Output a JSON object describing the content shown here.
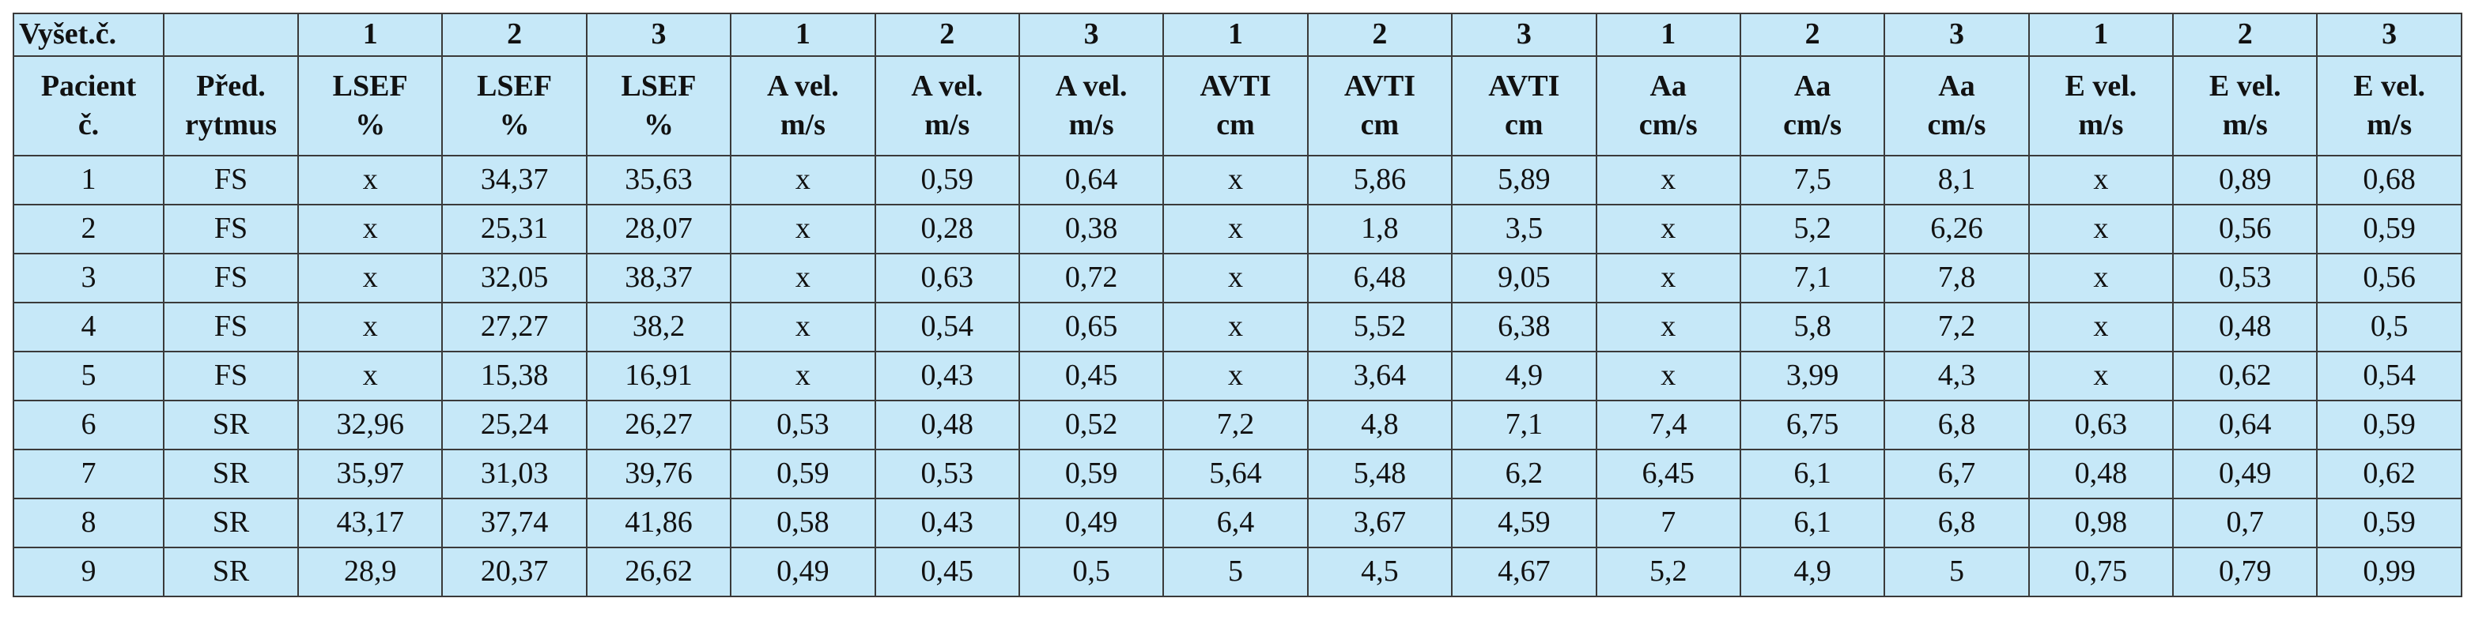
{
  "table": {
    "exam_label": "Vyšet.č.",
    "exam_numbers": [
      1,
      2,
      3,
      1,
      2,
      3,
      1,
      2,
      3,
      1,
      2,
      3,
      1,
      2,
      3
    ],
    "headers": [
      [
        "Pacient",
        "č."
      ],
      [
        "Před.",
        "rytmus"
      ],
      [
        "LSEF",
        "%"
      ],
      [
        "LSEF",
        "%"
      ],
      [
        "LSEF",
        "%"
      ],
      [
        "A vel.",
        "m/s"
      ],
      [
        "A vel.",
        "m/s"
      ],
      [
        "A vel.",
        "m/s"
      ],
      [
        "AVTI",
        "cm"
      ],
      [
        "AVTI",
        "cm"
      ],
      [
        "AVTI",
        "cm"
      ],
      [
        "Aa",
        "cm/s"
      ],
      [
        "Aa",
        "cm/s"
      ],
      [
        "Aa",
        "cm/s"
      ],
      [
        "E vel.",
        "m/s"
      ],
      [
        "E vel.",
        "m/s"
      ],
      [
        "E vel.",
        "m/s"
      ]
    ],
    "rows": [
      [
        "1",
        "FS",
        "x",
        "34,37",
        "35,63",
        "x",
        "0,59",
        "0,64",
        "x",
        "5,86",
        "5,89",
        "x",
        "7,5",
        "8,1",
        "x",
        "0,89",
        "0,68"
      ],
      [
        "2",
        "FS",
        "x",
        "25,31",
        "28,07",
        "x",
        "0,28",
        "0,38",
        "x",
        "1,8",
        "3,5",
        "x",
        "5,2",
        "6,26",
        "x",
        "0,56",
        "0,59"
      ],
      [
        "3",
        "FS",
        "x",
        "32,05",
        "38,37",
        "x",
        "0,63",
        "0,72",
        "x",
        "6,48",
        "9,05",
        "x",
        "7,1",
        "7,8",
        "x",
        "0,53",
        "0,56"
      ],
      [
        "4",
        "FS",
        "x",
        "27,27",
        "38,2",
        "x",
        "0,54",
        "0,65",
        "x",
        "5,52",
        "6,38",
        "x",
        "5,8",
        "7,2",
        "x",
        "0,48",
        "0,5"
      ],
      [
        "5",
        "FS",
        "x",
        "15,38",
        "16,91",
        "x",
        "0,43",
        "0,45",
        "x",
        "3,64",
        "4,9",
        "x",
        "3,99",
        "4,3",
        "x",
        "0,62",
        "0,54"
      ],
      [
        "6",
        "SR",
        "32,96",
        "25,24",
        "26,27",
        "0,53",
        "0,48",
        "0,52",
        "7,2",
        "4,8",
        "7,1",
        "7,4",
        "6,75",
        "6,8",
        "0,63",
        "0,64",
        "0,59"
      ],
      [
        "7",
        "SR",
        "35,97",
        "31,03",
        "39,76",
        "0,59",
        "0,53",
        "0,59",
        "5,64",
        "5,48",
        "6,2",
        "6,45",
        "6,1",
        "6,7",
        "0,48",
        "0,49",
        "0,62"
      ],
      [
        "8",
        "SR",
        "43,17",
        "37,74",
        "41,86",
        "0,58",
        "0,43",
        "0,49",
        "6,4",
        "3,67",
        "4,59",
        "7",
        "6,1",
        "6,8",
        "0,98",
        "0,7",
        "0,59"
      ],
      [
        "9",
        "SR",
        "28,9",
        "20,37",
        "26,62",
        "0,49",
        "0,45",
        "0,5",
        "5",
        "4,5",
        "4,67",
        "5,2",
        "4,9",
        "5",
        "0,75",
        "0,79",
        "0,99"
      ]
    ]
  }
}
